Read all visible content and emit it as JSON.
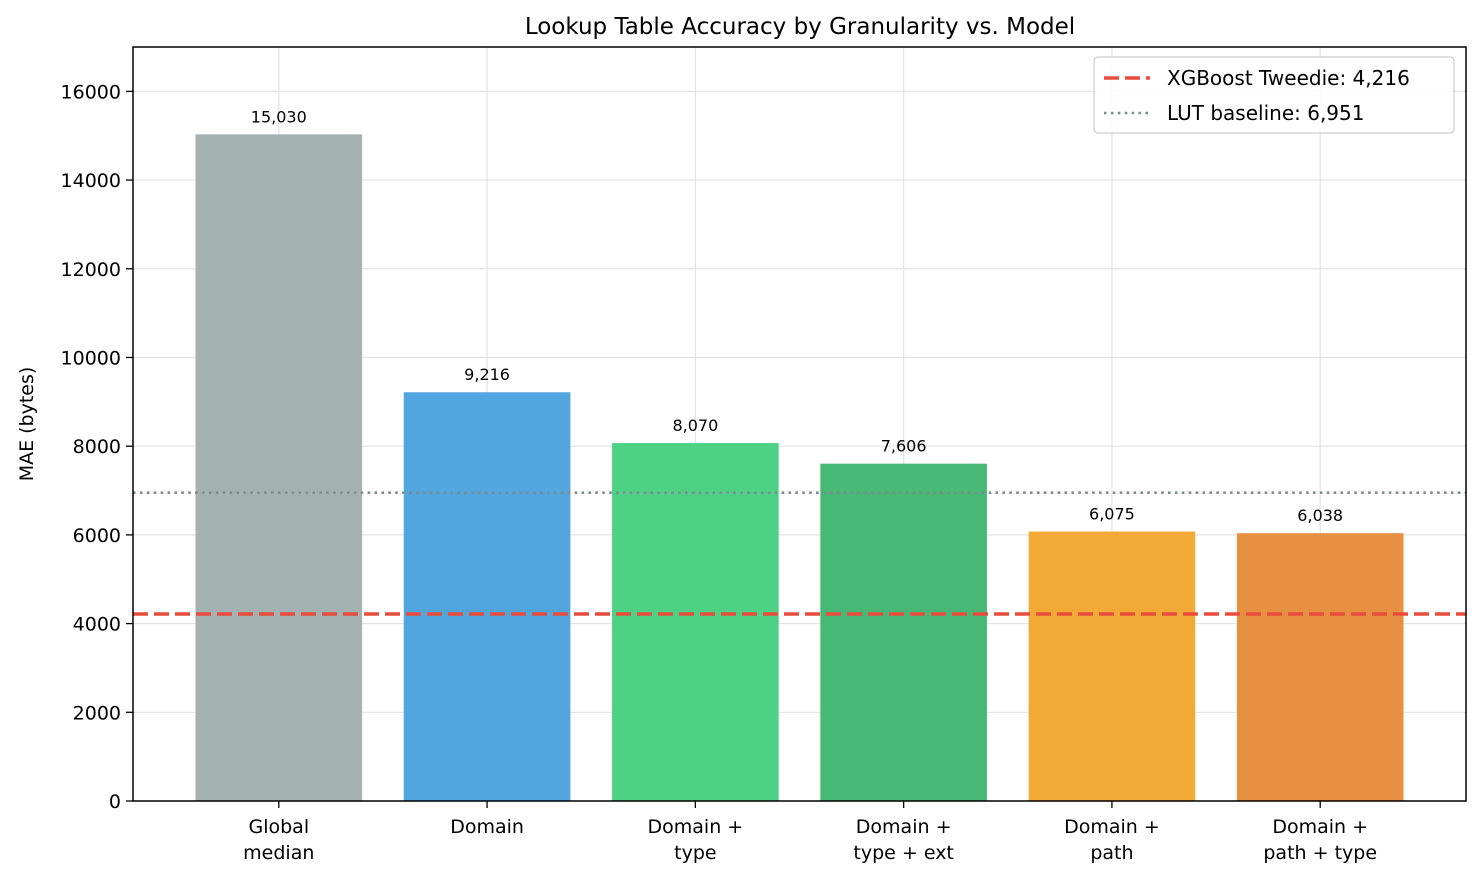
{
  "chart_data": {
    "type": "bar",
    "title": "Lookup Table Accuracy by Granularity vs. Model",
    "xlabel": "",
    "ylabel": "MAE (bytes)",
    "ylim": [
      0,
      17000
    ],
    "yticks": [
      0,
      2000,
      4000,
      6000,
      8000,
      10000,
      12000,
      14000,
      16000
    ],
    "grid": true,
    "legend_position": "top-right",
    "categories": [
      [
        "Global",
        "median"
      ],
      [
        "Domain"
      ],
      [
        "Domain +",
        "type"
      ],
      [
        "Domain +",
        "type + ext"
      ],
      [
        "Domain +",
        "path"
      ],
      [
        "Domain +",
        "path + type"
      ]
    ],
    "values": [
      15030,
      9216,
      8070,
      7606,
      6075,
      6038
    ],
    "data_labels": [
      "15,030",
      "9,216",
      "8,070",
      "7,606",
      "6,075",
      "6,038"
    ],
    "bar_colors": [
      "#a4b1b1",
      "#52a6df",
      "#4dd185",
      "#48b877",
      "#f2a935",
      "#e79042"
    ],
    "reference_lines": [
      {
        "label": "XGBoost Tweedie: 4,216",
        "value": 4216,
        "color": "#e74c3c",
        "style": "dashed"
      },
      {
        "label": "LUT baseline: 6,951",
        "value": 6951,
        "color": "#7f8c8d",
        "style": "dotted"
      }
    ]
  }
}
